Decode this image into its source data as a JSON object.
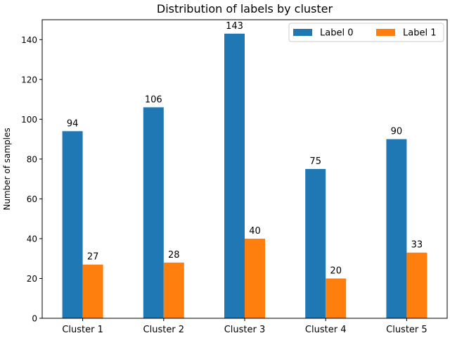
{
  "chart_data": {
    "type": "bar",
    "title": "Distribution of labels by cluster",
    "xlabel": "",
    "ylabel": "Number of samples",
    "categories": [
      "Cluster 1",
      "Cluster 2",
      "Cluster 3",
      "Cluster 4",
      "Cluster 5"
    ],
    "series": [
      {
        "name": "Label 0",
        "values": [
          94,
          106,
          143,
          75,
          90
        ],
        "color": "#1f77b4"
      },
      {
        "name": "Label 1",
        "values": [
          27,
          28,
          40,
          20,
          33
        ],
        "color": "#ff7f0e"
      }
    ],
    "ylim": [
      0,
      150
    ],
    "yticks": [
      0,
      20,
      40,
      60,
      80,
      100,
      120,
      140
    ],
    "grid": false,
    "legend_position": "top-right"
  }
}
